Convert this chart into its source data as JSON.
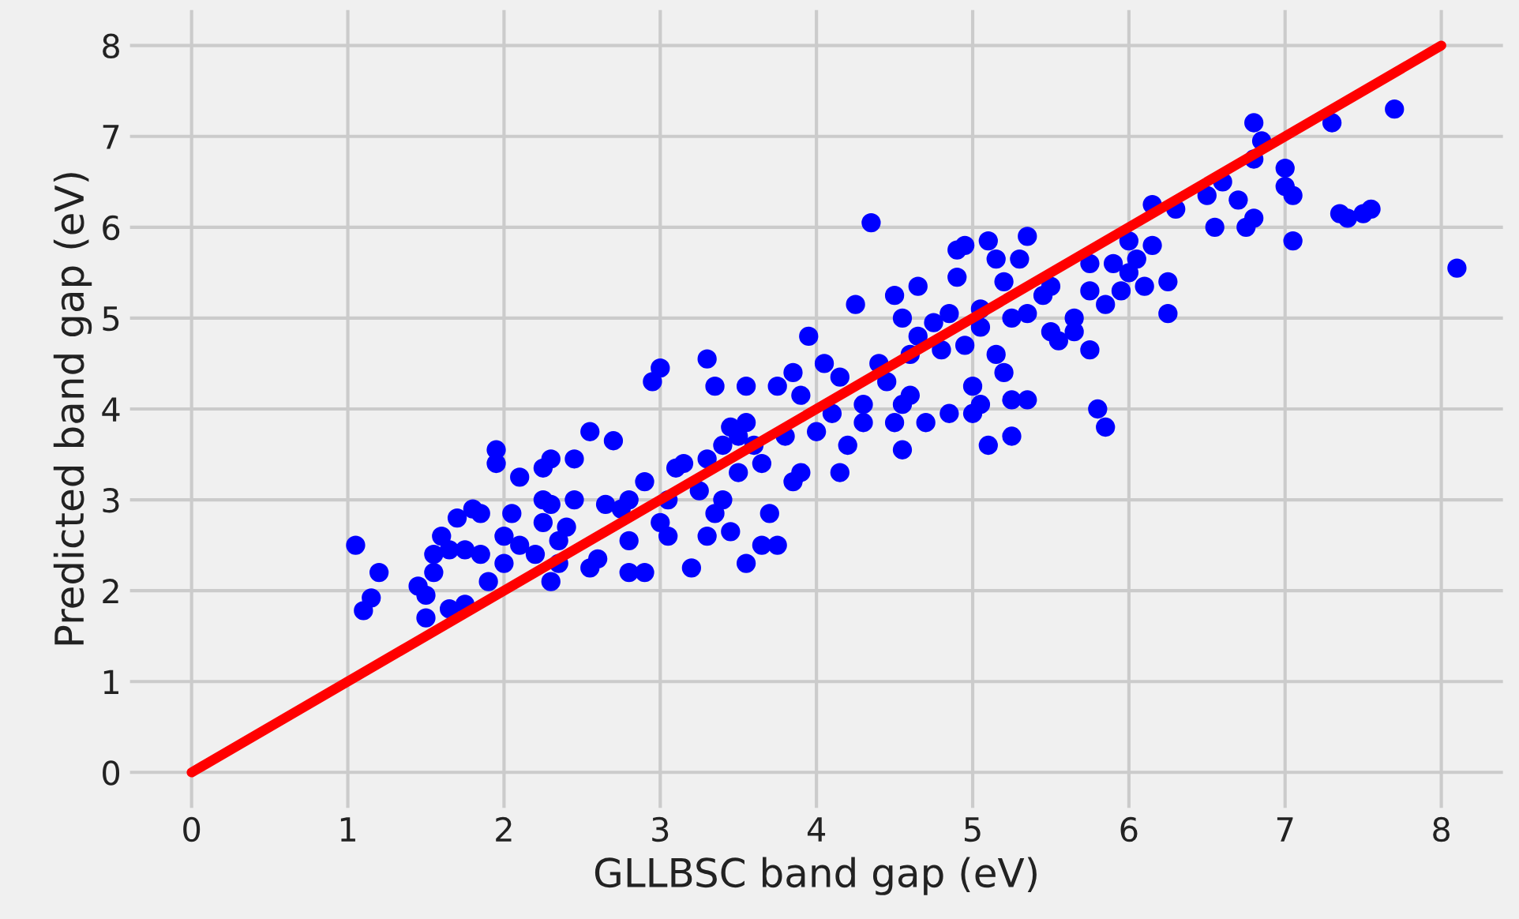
{
  "chart_data": {
    "type": "scatter",
    "xlabel": "GLLBSC band gap (eV)",
    "ylabel": "Predicted band gap (eV)",
    "xlim": [
      -0.4,
      8.4
    ],
    "ylim": [
      -0.4,
      8.4
    ],
    "xticks": [
      0,
      1,
      2,
      3,
      4,
      5,
      6,
      7,
      8
    ],
    "yticks": [
      0,
      1,
      2,
      3,
      4,
      5,
      6,
      7,
      8
    ],
    "grid": true,
    "series": [
      {
        "marker": "circle",
        "color": "#0000ff",
        "x": [
          1.05,
          1.1,
          1.2,
          1.15,
          1.45,
          1.5,
          1.5,
          1.55,
          1.55,
          1.6,
          1.65,
          1.65,
          1.75,
          1.75,
          1.7,
          1.8,
          1.85,
          1.9,
          1.85,
          1.95,
          1.95,
          2.0,
          2.0,
          2.05,
          2.1,
          2.1,
          2.2,
          2.25,
          2.25,
          2.25,
          2.3,
          2.3,
          2.35,
          2.35,
          2.3,
          2.4,
          2.45,
          2.45,
          2.55,
          2.55,
          2.6,
          2.65,
          2.7,
          2.75,
          2.8,
          2.8,
          2.8,
          2.9,
          2.9,
          2.95,
          3.0,
          3.0,
          3.05,
          3.05,
          3.1,
          3.15,
          3.2,
          3.25,
          3.3,
          3.3,
          3.3,
          3.35,
          3.35,
          3.4,
          3.4,
          3.45,
          3.45,
          3.5,
          3.5,
          3.55,
          3.55,
          3.55,
          3.6,
          3.65,
          3.65,
          3.7,
          3.75,
          3.75,
          3.8,
          3.85,
          3.85,
          3.9,
          3.9,
          3.95,
          4.0,
          4.05,
          4.1,
          4.15,
          4.15,
          4.2,
          4.25,
          4.3,
          4.3,
          4.35,
          4.4,
          4.45,
          4.5,
          4.5,
          4.55,
          4.55,
          4.55,
          4.6,
          4.6,
          4.65,
          4.65,
          4.7,
          4.75,
          4.8,
          4.85,
          4.85,
          4.9,
          4.9,
          4.95,
          4.95,
          5.0,
          5.0,
          5.05,
          5.05,
          5.05,
          5.1,
          5.1,
          5.15,
          5.15,
          5.2,
          5.2,
          5.25,
          5.25,
          5.25,
          5.3,
          5.35,
          5.35,
          5.35,
          5.45,
          5.5,
          5.5,
          5.55,
          5.65,
          5.65,
          5.75,
          5.75,
          5.75,
          5.8,
          5.85,
          5.85,
          5.9,
          5.95,
          6.0,
          6.0,
          6.05,
          6.1,
          6.15,
          6.15,
          6.25,
          6.25,
          6.3,
          6.5,
          6.55,
          6.6,
          6.7,
          6.75,
          6.8,
          6.8,
          6.8,
          6.85,
          7.0,
          7.0,
          7.05,
          7.05,
          7.3,
          7.35,
          7.4,
          7.5,
          7.55,
          7.7,
          8.1
        ],
        "values": [
          2.5,
          1.78,
          2.2,
          1.92,
          2.05,
          1.95,
          1.7,
          2.2,
          2.4,
          2.6,
          2.45,
          1.8,
          1.85,
          2.45,
          2.8,
          2.9,
          2.4,
          2.1,
          2.85,
          3.55,
          3.4,
          2.6,
          2.3,
          2.85,
          3.25,
          2.5,
          2.4,
          3.35,
          3.0,
          2.75,
          2.1,
          3.45,
          2.3,
          2.55,
          2.95,
          2.7,
          3.45,
          3.0,
          3.75,
          2.25,
          2.35,
          2.95,
          3.65,
          2.9,
          3.0,
          2.55,
          2.2,
          3.2,
          2.2,
          4.3,
          4.45,
          2.75,
          2.6,
          3.0,
          3.35,
          3.4,
          2.25,
          3.1,
          2.6,
          3.45,
          4.55,
          4.25,
          2.85,
          3.6,
          3.0,
          3.8,
          2.65,
          3.7,
          3.3,
          4.25,
          2.3,
          3.85,
          3.6,
          3.4,
          2.5,
          2.85,
          2.5,
          4.25,
          3.7,
          4.4,
          3.2,
          3.3,
          4.15,
          4.8,
          3.75,
          4.5,
          3.95,
          4.35,
          3.3,
          3.6,
          5.15,
          4.05,
          3.85,
          6.05,
          4.5,
          4.3,
          5.25,
          3.85,
          5.0,
          4.05,
          3.55,
          4.6,
          4.15,
          5.35,
          4.8,
          3.85,
          4.95,
          4.65,
          5.05,
          3.95,
          5.75,
          5.45,
          5.8,
          4.7,
          4.25,
          3.95,
          5.1,
          4.9,
          4.05,
          5.85,
          3.6,
          5.65,
          4.6,
          4.4,
          5.4,
          5.0,
          3.7,
          4.1,
          5.65,
          5.05,
          4.1,
          5.9,
          5.25,
          4.85,
          5.35,
          4.75,
          4.85,
          5.0,
          5.6,
          5.3,
          4.65,
          4.0,
          3.8,
          5.15,
          5.6,
          5.3,
          5.85,
          5.5,
          5.65,
          5.35,
          6.25,
          5.8,
          5.4,
          5.05,
          6.2,
          6.35,
          6.0,
          6.5,
          6.3,
          6.0,
          6.1,
          6.75,
          7.15,
          6.95,
          6.65,
          6.45,
          6.35,
          5.85,
          7.15,
          6.15,
          6.1,
          6.15,
          6.2,
          7.3,
          5.55
        ]
      },
      {
        "type": "line",
        "marker": "none",
        "color": "#ff0000",
        "x": [
          0,
          8
        ],
        "values": [
          0,
          8
        ]
      }
    ]
  }
}
